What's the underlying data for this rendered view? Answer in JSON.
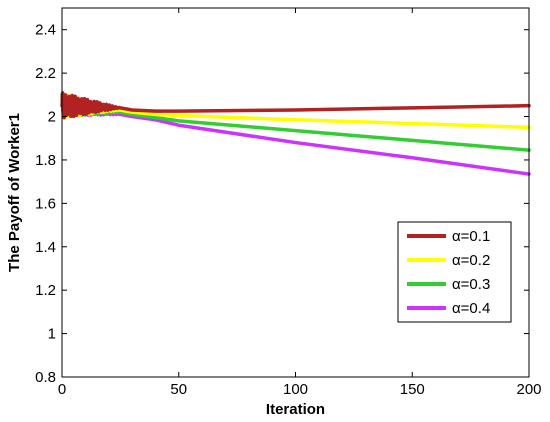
{
  "chart_data": {
    "type": "line",
    "title": "",
    "xlabel": "Iteration",
    "ylabel": "The Payoff of Worker1",
    "xlim": [
      0,
      200
    ],
    "ylim": [
      0.8,
      2.5
    ],
    "xticks": [
      0,
      50,
      100,
      150,
      200
    ],
    "xtick_labels": [
      "0",
      "50",
      "100",
      "150",
      "200"
    ],
    "yticks": [
      0.8,
      1.0,
      1.2,
      1.4,
      1.6,
      1.8,
      2.0,
      2.2,
      2.4
    ],
    "ytick_labels": [
      "0.8",
      "1",
      "1.2",
      "1.4",
      "1.6",
      "1.8",
      "2",
      "2.2",
      "2.4"
    ],
    "grid": false,
    "legend_position": "lower-right",
    "series": [
      {
        "name": "α=0.1",
        "color": "#b22222",
        "x": [
          0,
          25,
          30,
          40,
          50,
          100,
          150,
          200
        ],
        "y": [
          2.05,
          2.04,
          2.03,
          2.025,
          2.025,
          2.03,
          2.04,
          2.05
        ]
      },
      {
        "name": "α=0.2",
        "color": "#ffff00",
        "x": [
          0,
          25,
          30,
          40,
          50,
          100,
          150,
          200
        ],
        "y": [
          2.05,
          2.03,
          2.02,
          2.01,
          2.005,
          1.985,
          1.968,
          1.95
        ]
      },
      {
        "name": "α=0.3",
        "color": "#33cc33",
        "x": [
          0,
          25,
          30,
          40,
          50,
          100,
          150,
          200
        ],
        "y": [
          2.05,
          2.02,
          2.01,
          1.995,
          1.98,
          1.935,
          1.89,
          1.845
        ]
      },
      {
        "name": "α=0.4",
        "color": "#cc33ff",
        "x": [
          0,
          25,
          30,
          40,
          50,
          100,
          150,
          200
        ],
        "y": [
          2.05,
          2.01,
          2.0,
          1.985,
          1.96,
          1.88,
          1.81,
          1.735
        ]
      }
    ]
  }
}
